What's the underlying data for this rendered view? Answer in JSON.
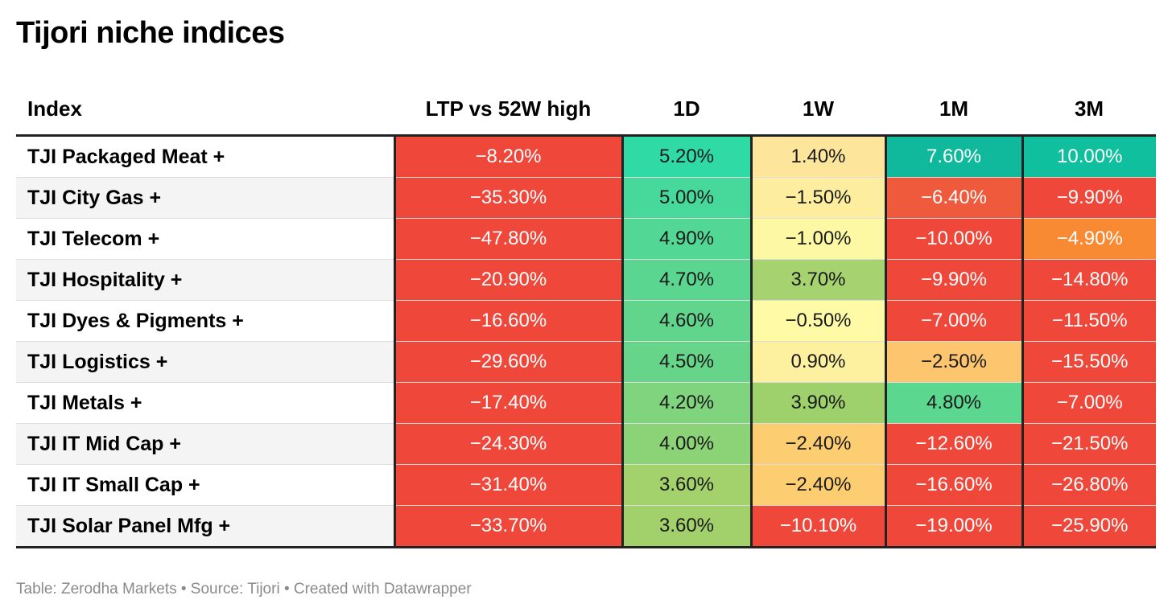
{
  "title": "Tijori niche indices",
  "footer": "Table: Zerodha Markets • Source: Tijori • Created with Datawrapper",
  "chart_data": {
    "type": "table",
    "title": "Tijori niche indices",
    "columns": [
      "Index",
      "LTP vs 52W high",
      "1D",
      "1W",
      "1M",
      "3M"
    ],
    "rows": [
      {
        "index": "TJI Packaged Meat +",
        "values": [
          "−8.20%",
          "5.20%",
          "1.40%",
          "7.60%",
          "10.00%"
        ]
      },
      {
        "index": "TJI City Gas +",
        "values": [
          "−35.30%",
          "5.00%",
          "−1.50%",
          "−6.40%",
          "−9.90%"
        ]
      },
      {
        "index": "TJI Telecom +",
        "values": [
          "−47.80%",
          "4.90%",
          "−1.00%",
          "−10.00%",
          "−4.90%"
        ]
      },
      {
        "index": "TJI Hospitality +",
        "values": [
          "−20.90%",
          "4.70%",
          "3.70%",
          "−9.90%",
          "−14.80%"
        ]
      },
      {
        "index": "TJI Dyes & Pigments +",
        "values": [
          "−16.60%",
          "4.60%",
          "−0.50%",
          "−7.00%",
          "−11.50%"
        ]
      },
      {
        "index": "TJI Logistics +",
        "values": [
          "−29.60%",
          "4.50%",
          "0.90%",
          "−2.50%",
          "−15.50%"
        ]
      },
      {
        "index": "TJI Metals +",
        "values": [
          "−17.40%",
          "4.20%",
          "3.90%",
          "4.80%",
          "−7.00%"
        ]
      },
      {
        "index": "TJI IT Mid Cap +",
        "values": [
          "−24.30%",
          "4.00%",
          "−2.40%",
          "−12.60%",
          "−21.50%"
        ]
      },
      {
        "index": "TJI IT Small Cap +",
        "values": [
          "−31.40%",
          "3.60%",
          "−2.40%",
          "−16.60%",
          "−26.80%"
        ]
      },
      {
        "index": "TJI Solar Panel Mfg +",
        "values": [
          "−33.70%",
          "3.60%",
          "−10.10%",
          "−19.00%",
          "−25.90%"
        ]
      }
    ],
    "cell_colors": [
      [
        "#ef473a",
        "#2fdaa5",
        "#fde59c",
        "#10b99b",
        "#10bf9e"
      ],
      [
        "#ef473a",
        "#47d99c",
        "#fcee9e",
        "#ef5a3c",
        "#ef473a"
      ],
      [
        "#ef473a",
        "#53d795",
        "#fdf8a3",
        "#ef473a",
        "#f98a34"
      ],
      [
        "#ef473a",
        "#5bd690",
        "#a6d270",
        "#ef473a",
        "#ef473a"
      ],
      [
        "#ef473a",
        "#62d58d",
        "#fefaa6",
        "#ef473a",
        "#ef473a"
      ],
      [
        "#ef473a",
        "#66d589",
        "#fdf09f",
        "#fdc66e",
        "#ef473a"
      ],
      [
        "#ef473a",
        "#7fd47d",
        "#9ed16c",
        "#5bd790",
        "#ef473a"
      ],
      [
        "#ef473a",
        "#8cd377",
        "#fdcd71",
        "#ef473a",
        "#ef473a"
      ],
      [
        "#ef473a",
        "#a3d26c",
        "#fdcd71",
        "#ef473a",
        "#ef473a"
      ],
      [
        "#ef473a",
        "#a2d16b",
        "#ef473a",
        "#ef473a",
        "#ef473a"
      ]
    ],
    "dark_text": [
      [
        false,
        true,
        true,
        false,
        false
      ],
      [
        false,
        true,
        true,
        false,
        false
      ],
      [
        false,
        true,
        true,
        false,
        false
      ],
      [
        false,
        true,
        true,
        false,
        false
      ],
      [
        false,
        true,
        true,
        false,
        false
      ],
      [
        false,
        true,
        true,
        true,
        false
      ],
      [
        false,
        true,
        true,
        true,
        false
      ],
      [
        false,
        true,
        true,
        false,
        false
      ],
      [
        false,
        true,
        true,
        false,
        false
      ],
      [
        false,
        true,
        false,
        false,
        false
      ]
    ]
  }
}
